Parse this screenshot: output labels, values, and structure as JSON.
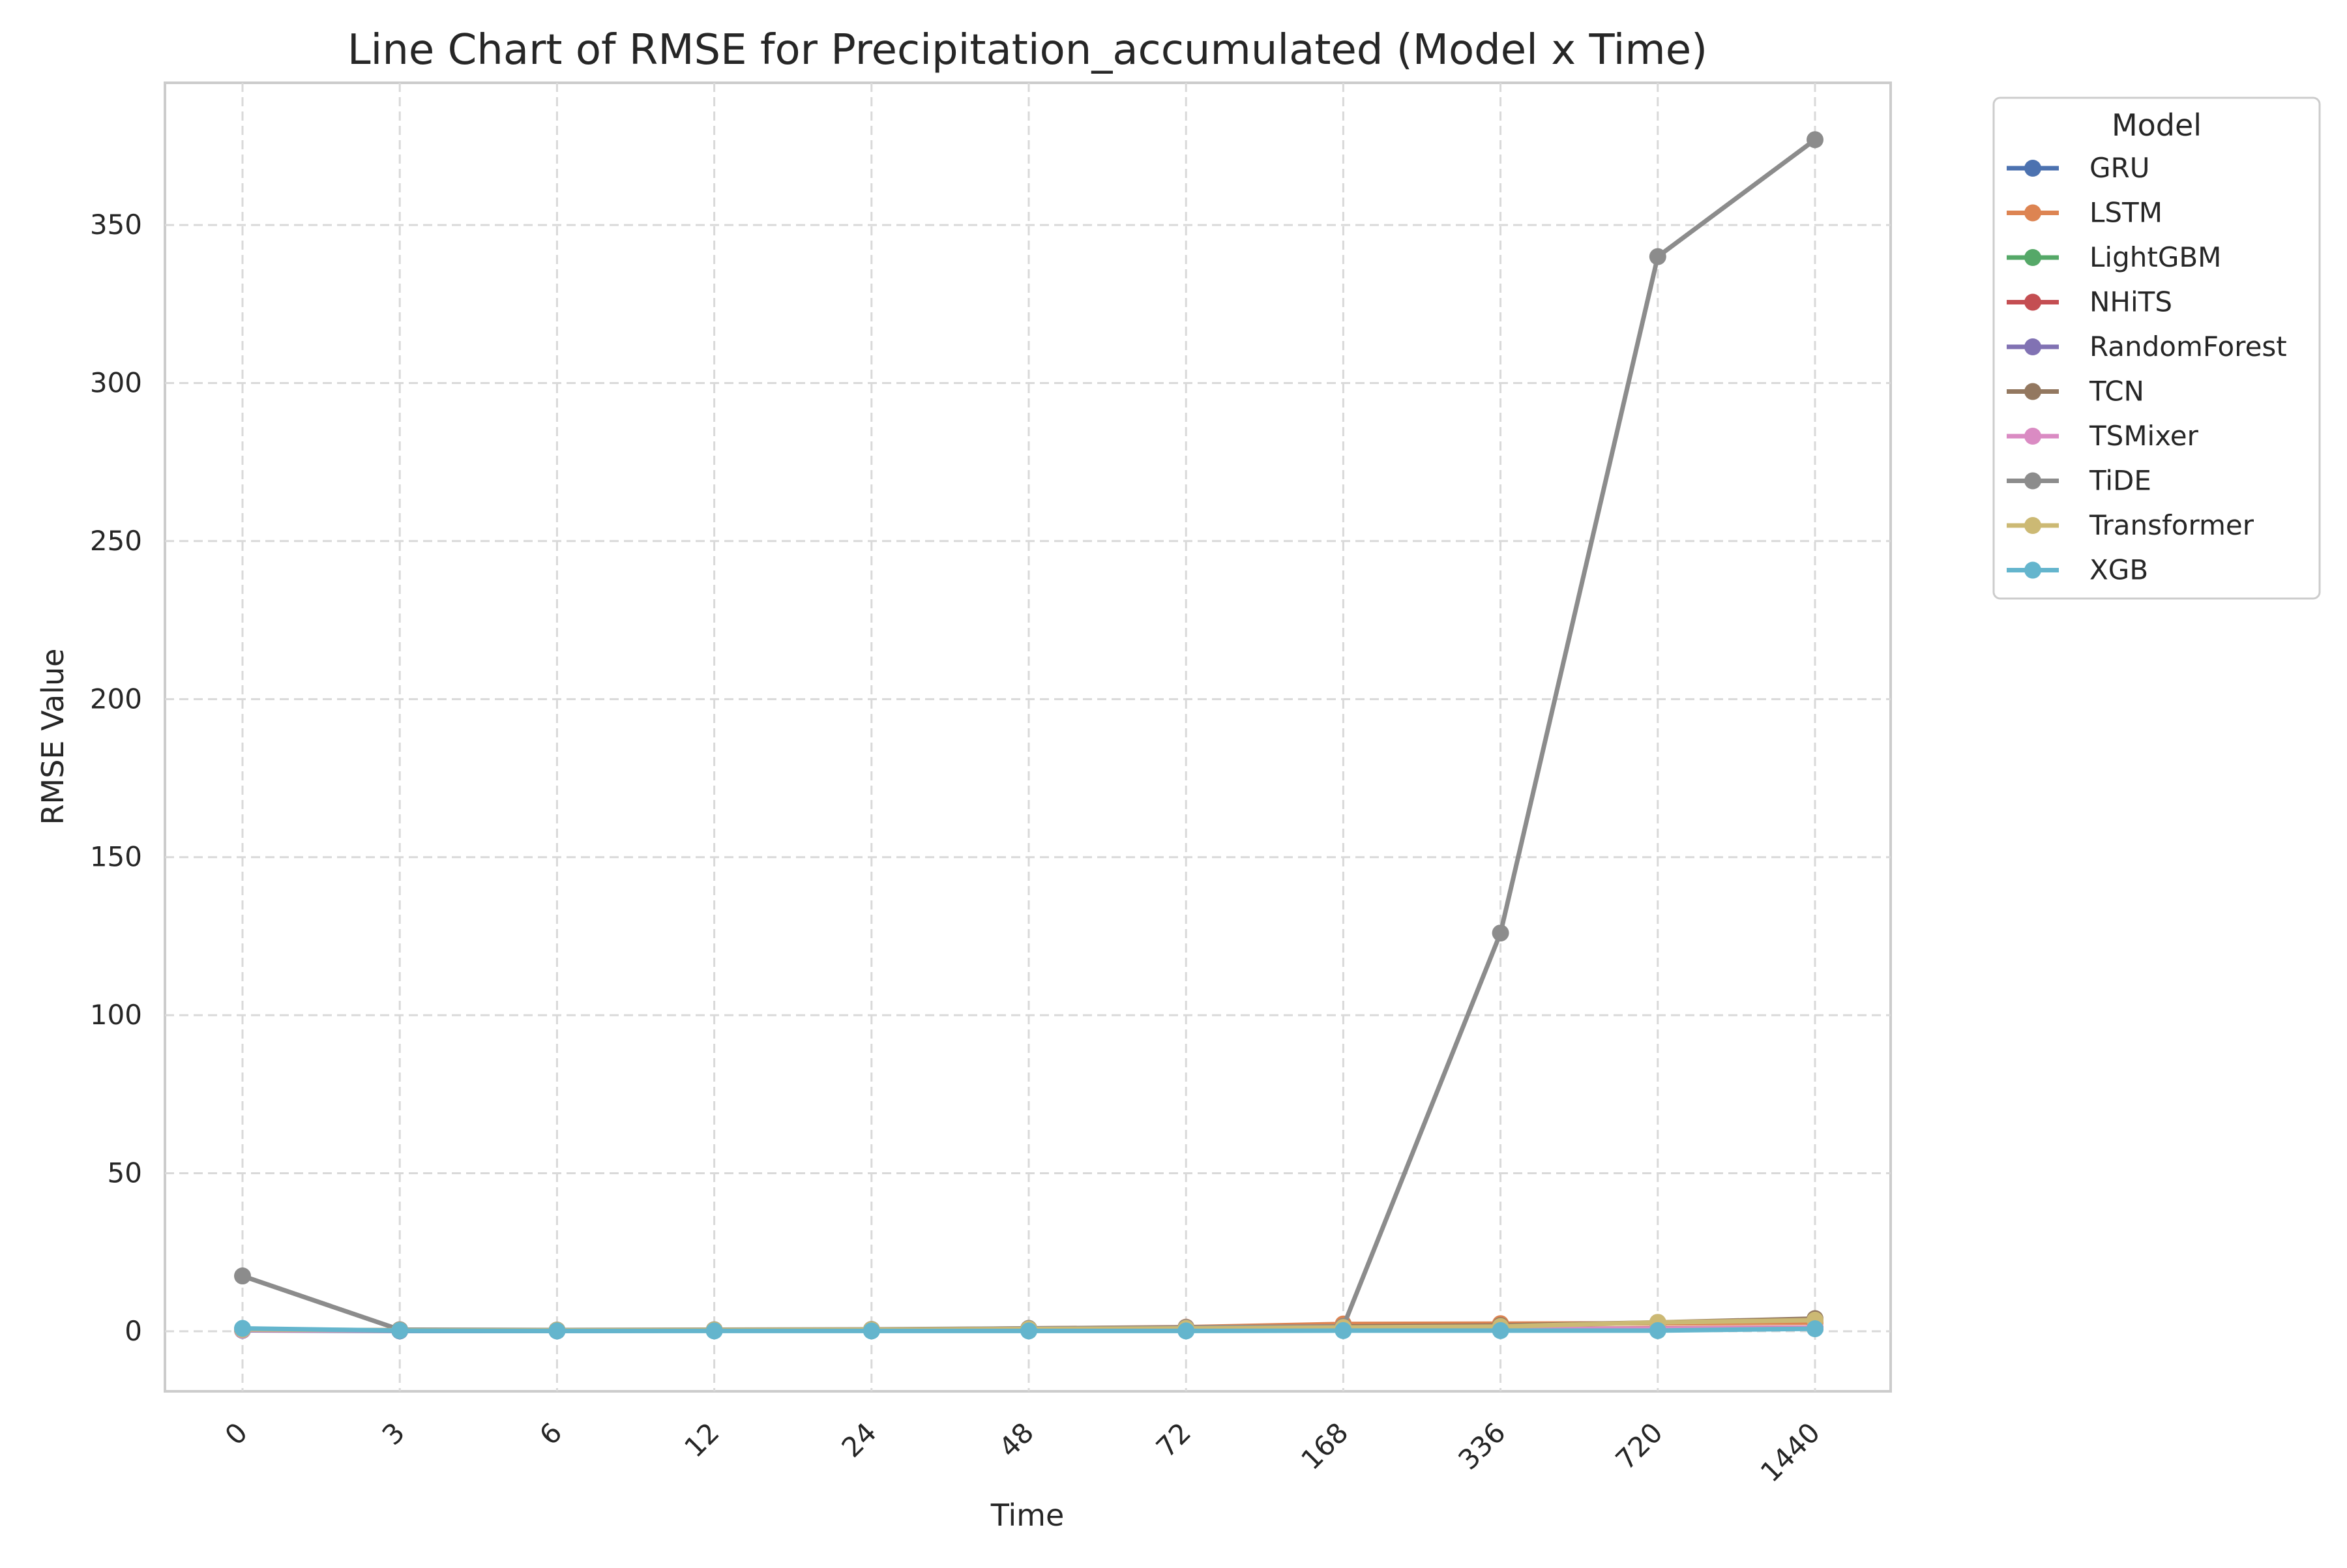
{
  "chart_data": {
    "type": "line",
    "title": "Line Chart of RMSE for Precipitation_accumulated (Model x Time)",
    "xlabel": "Time",
    "ylabel": "RMSE Value",
    "categories": [
      "0",
      "3",
      "6",
      "12",
      "24",
      "48",
      "72",
      "168",
      "336",
      "720",
      "1440"
    ],
    "yticks": [
      0,
      50,
      100,
      150,
      200,
      250,
      300,
      350
    ],
    "ylim": [
      -19,
      395
    ],
    "grid": true,
    "legend": {
      "title": "Model",
      "placement": "outside-right"
    },
    "series": [
      {
        "name": "GRU",
        "color": "#4c72b0",
        "values": [
          0.3,
          0.1,
          0.1,
          0.2,
          0.2,
          0.3,
          0.4,
          0.5,
          0.6,
          0.8,
          1.0
        ]
      },
      {
        "name": "LSTM",
        "color": "#dd8452",
        "values": [
          0.4,
          0.3,
          0.3,
          0.4,
          0.5,
          0.9,
          1.3,
          2.3,
          2.4,
          2.5,
          2.8
        ]
      },
      {
        "name": "LightGBM",
        "color": "#55a868",
        "values": [
          0.5,
          0.2,
          0.2,
          0.2,
          0.2,
          0.3,
          0.3,
          0.4,
          0.4,
          0.5,
          0.9
        ]
      },
      {
        "name": "NHiTS",
        "color": "#c44e52",
        "values": [
          0.4,
          0.2,
          0.2,
          0.3,
          0.3,
          0.4,
          0.5,
          0.6,
          0.7,
          0.9,
          1.2
        ]
      },
      {
        "name": "RandomForest",
        "color": "#8172b3",
        "values": [
          0.5,
          0.2,
          0.2,
          0.2,
          0.2,
          0.3,
          0.3,
          0.4,
          0.4,
          0.5,
          0.9
        ]
      },
      {
        "name": "TCN",
        "color": "#937860",
        "values": [
          0.5,
          0.3,
          0.3,
          0.4,
          0.5,
          0.7,
          1.0,
          1.5,
          1.8,
          2.8,
          4.0
        ]
      },
      {
        "name": "TSMixer",
        "color": "#da8bc3",
        "values": [
          0.4,
          0.2,
          0.2,
          0.3,
          0.3,
          0.4,
          0.5,
          0.6,
          0.7,
          0.8,
          1.1
        ]
      },
      {
        "name": "TiDE",
        "color": "#8c8c8c",
        "values": [
          17.5,
          0.5,
          0.4,
          0.5,
          0.6,
          0.9,
          1.2,
          1.5,
          126,
          340,
          377
        ]
      },
      {
        "name": "Transformer",
        "color": "#ccb974",
        "values": [
          0.6,
          0.3,
          0.3,
          0.4,
          0.5,
          0.7,
          0.9,
          1.2,
          1.5,
          2.8,
          3.5
        ]
      },
      {
        "name": "XGB",
        "color": "#64b5cd",
        "values": [
          0.9,
          0.2,
          0.1,
          0.1,
          0.1,
          0.1,
          0.1,
          0.2,
          0.2,
          0.2,
          0.8
        ]
      }
    ]
  }
}
